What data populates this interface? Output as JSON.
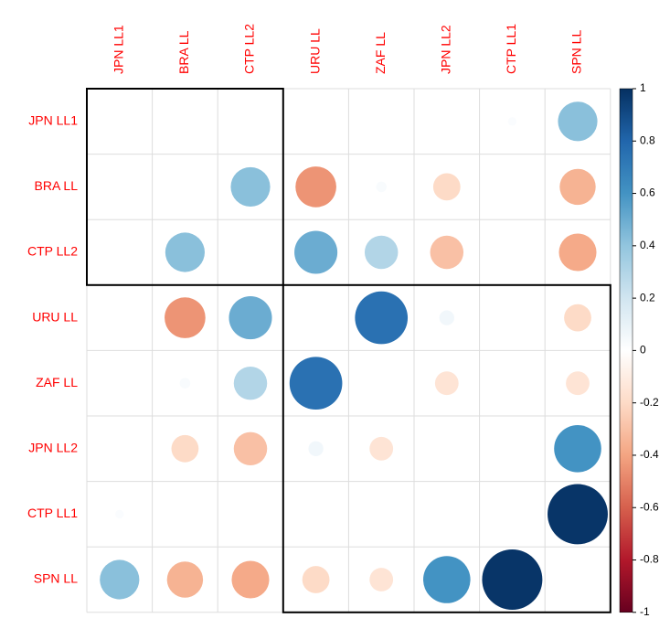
{
  "chart_data": {
    "type": "corrplot",
    "labels": [
      "JPN LL1",
      "BRA LL",
      "CTP LL2",
      "URU LL",
      "ZAF LL",
      "JPN LL2",
      "CTP LL1",
      "SPN LL"
    ],
    "matrix": [
      [
        null,
        0,
        0,
        0,
        0,
        0,
        0.02,
        0.42
      ],
      [
        0,
        null,
        0.42,
        -0.45,
        0.03,
        -0.2,
        0,
        -0.35
      ],
      [
        0,
        0.42,
        null,
        0.5,
        0.3,
        -0.3,
        0,
        -0.38
      ],
      [
        0,
        -0.45,
        0.5,
        null,
        0.75,
        0.06,
        0,
        -0.2
      ],
      [
        0,
        0.03,
        0.3,
        0.75,
        null,
        -0.15,
        0,
        -0.15
      ],
      [
        0,
        -0.2,
        -0.3,
        0.06,
        -0.15,
        null,
        0,
        0.6
      ],
      [
        0.02,
        0,
        0,
        0,
        0,
        0,
        null,
        0.98
      ],
      [
        0.42,
        -0.35,
        -0.38,
        -0.2,
        -0.15,
        0.6,
        0.98,
        null
      ]
    ],
    "cluster_sizes": [
      3,
      5
    ],
    "zlim": [
      -1,
      1
    ],
    "zticks": [
      1,
      0.8,
      0.6,
      0.4,
      0.2,
      0,
      -0.2,
      -0.4,
      -0.6,
      -0.8,
      -1
    ],
    "colors": [
      "#67001f",
      "#b2182b",
      "#d6604d",
      "#f4a582",
      "#fddbc7",
      "#ffffff",
      "#d1e5f0",
      "#92c5de",
      "#4393c3",
      "#2166ac",
      "#053061"
    ]
  }
}
